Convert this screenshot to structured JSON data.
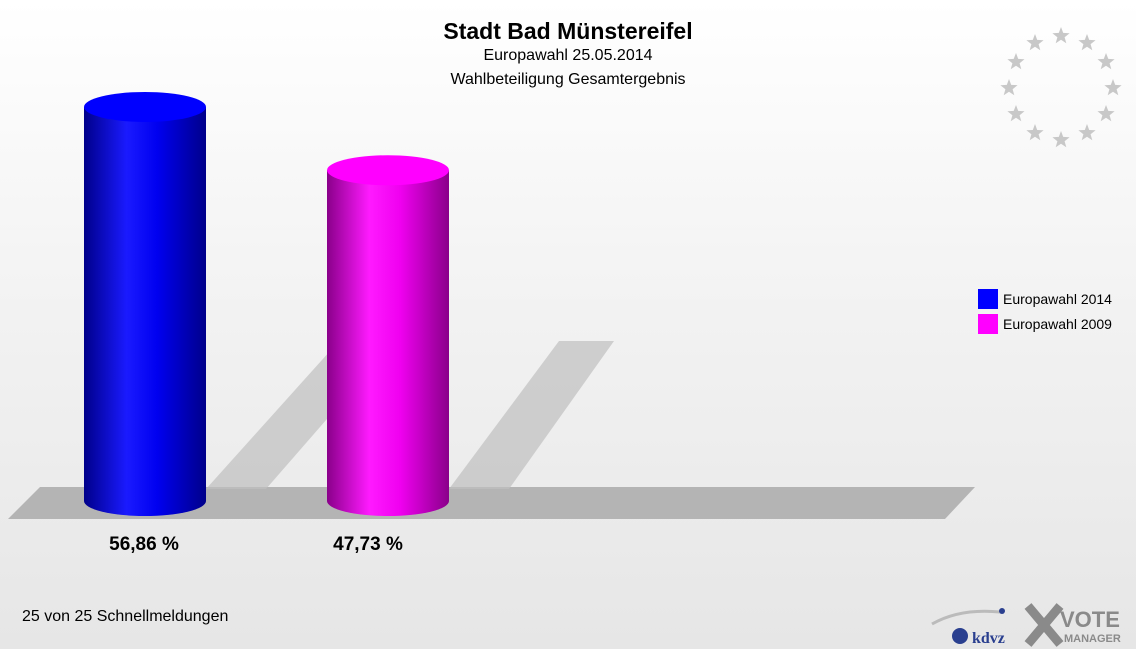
{
  "chart_data": {
    "type": "bar",
    "title": "Stadt Bad Münstereifel",
    "subtitle": "Europawahl 25.05.2014",
    "subtitle2": "Wahlbeteiligung Gesamtergebnis",
    "series": [
      {
        "name": "Europawahl 2014",
        "value": 56.86,
        "label": "56,86 %",
        "color": "#0000ff"
      },
      {
        "name": "Europawahl 2009",
        "value": 47.73,
        "label": "47,73 %",
        "color": "#ff00ff"
      }
    ],
    "ylim": [
      0,
      100
    ],
    "legend_position": "right",
    "grid": false
  },
  "footer": "25 von 25 Schnellmeldungen",
  "logos": {
    "kdvz": "kdvz",
    "vote": "VOTE",
    "manager": "MANAGER"
  },
  "icons": {
    "stars": "eu-stars-icon"
  }
}
